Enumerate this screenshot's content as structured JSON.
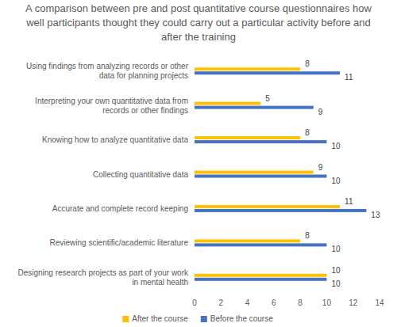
{
  "chart_data": {
    "type": "bar",
    "orientation": "horizontal",
    "title": "A comparison between pre and post quantitative course questionnaires how well participants thought they could carry out a particular activity before and after the training",
    "categories": [
      "Using findings from analyzing records or other data for planning projects",
      "Interpreting your own quantitative data from records or other findings",
      "Knowing how to analyze quantitative data",
      "Collecting quantitative data",
      "Accurate and complete record keeping",
      "Reviewing scientific/academic literature",
      "Designing research projects as part of your work in mental health"
    ],
    "series": [
      {
        "name": "After the course",
        "color": "#ffc000",
        "values": [
          8,
          5,
          8,
          9,
          11,
          8,
          10
        ]
      },
      {
        "name": "Before the course",
        "color": "#4472c4",
        "values": [
          11,
          9,
          10,
          10,
          13,
          10,
          10
        ]
      }
    ],
    "xlim": [
      0,
      14
    ],
    "xticks": [
      0,
      2,
      4,
      6,
      8,
      10,
      12,
      14
    ],
    "grid": false,
    "legend": "bottom",
    "data_labels": true
  }
}
